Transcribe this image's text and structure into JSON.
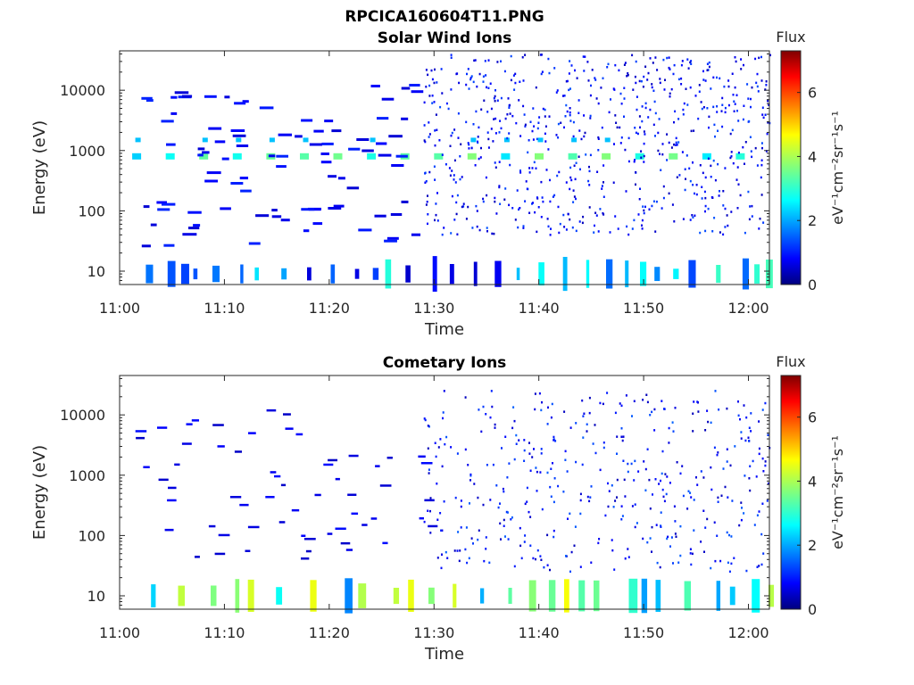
{
  "figure_title": "RPCICA160604T11.PNG",
  "chart_data": [
    {
      "type": "heatmap",
      "title": "Solar Wind Ions",
      "xlabel": "Time",
      "ylabel": "Energy (eV)",
      "x_ticks": [
        "11:00",
        "11:10",
        "11:20",
        "11:30",
        "11:40",
        "11:50",
        "12:00"
      ],
      "x_range_minutes": [
        0,
        62
      ],
      "y_scale": "log",
      "y_ticks": [
        10,
        100,
        1000,
        10000
      ],
      "y_tick_labels": [
        "10",
        "100",
        "1000",
        "10000"
      ],
      "ylim": [
        6,
        45000
      ],
      "colorbar": {
        "title": "Flux",
        "label": "eV⁻¹cm⁻²sr⁻¹s⁻¹",
        "range": [
          0,
          7.3
        ],
        "ticks": [
          "0",
          "2",
          "4",
          "6"
        ],
        "colormap": "jet"
      },
      "features": [
        {
          "time_range_minutes": [
            1,
            62
          ],
          "energy_eV": 800,
          "flux": 3.2,
          "note": "periodic solar wind beam"
        },
        {
          "time_range_minutes": [
            29,
            62
          ],
          "energy_eV": [
            10,
            40000
          ],
          "flux": 1.0,
          "note": "scattered counts"
        },
        {
          "time_range_minutes": [
            2,
            62
          ],
          "energy_eV": [
            6,
            30
          ],
          "flux": 2.0,
          "note": "low-energy counts"
        }
      ]
    },
    {
      "type": "heatmap",
      "title": "Cometary Ions",
      "xlabel": "Time",
      "ylabel": "Energy (eV)",
      "x_ticks": [
        "11:00",
        "11:10",
        "11:20",
        "11:30",
        "11:40",
        "11:50",
        "12:00"
      ],
      "x_range_minutes": [
        0,
        62
      ],
      "y_scale": "log",
      "y_ticks": [
        10,
        100,
        1000,
        10000
      ],
      "y_tick_labels": [
        "10",
        "100",
        "1000",
        "10000"
      ],
      "ylim": [
        6,
        45000
      ],
      "colorbar": {
        "title": "Flux",
        "label": "eV⁻¹cm⁻²sr⁻¹s⁻¹",
        "range": [
          0,
          7.3
        ],
        "ticks": [
          "0",
          "2",
          "4",
          "6"
        ],
        "colormap": "jet"
      },
      "features": [
        {
          "time_range_minutes": [
            3,
            62
          ],
          "energy_eV": [
            6,
            20
          ],
          "flux": 3.0,
          "note": "low-energy cometary ions"
        },
        {
          "time_range_minutes": [
            1,
            62
          ],
          "energy_eV": [
            30,
            15000
          ],
          "flux": 0.7,
          "note": "sparse counts"
        }
      ]
    }
  ]
}
